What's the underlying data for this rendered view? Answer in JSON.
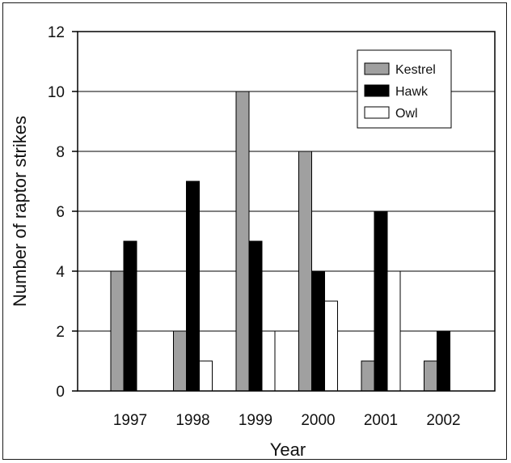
{
  "chart_data": {
    "type": "bar",
    "categories": [
      "1997",
      "1998",
      "1999",
      "2000",
      "2001",
      "2002"
    ],
    "series": [
      {
        "name": "Kestrel",
        "values": [
          4,
          2,
          10,
          8,
          1,
          1
        ],
        "color": "#a0a0a0"
      },
      {
        "name": "Hawk",
        "values": [
          5,
          7,
          5,
          4,
          6,
          2
        ],
        "color": "#000000"
      },
      {
        "name": "Owl",
        "values": [
          0,
          1,
          2,
          3,
          4,
          0
        ],
        "color": "#ffffff"
      }
    ],
    "title": "",
    "xlabel": "Year",
    "ylabel": "Number of raptor strikes",
    "ylim": [
      0,
      12
    ],
    "yticks": [
      "0",
      "2",
      "4",
      "6",
      "8",
      "10",
      "12"
    ],
    "grid": true,
    "legend_position": "top-right"
  }
}
